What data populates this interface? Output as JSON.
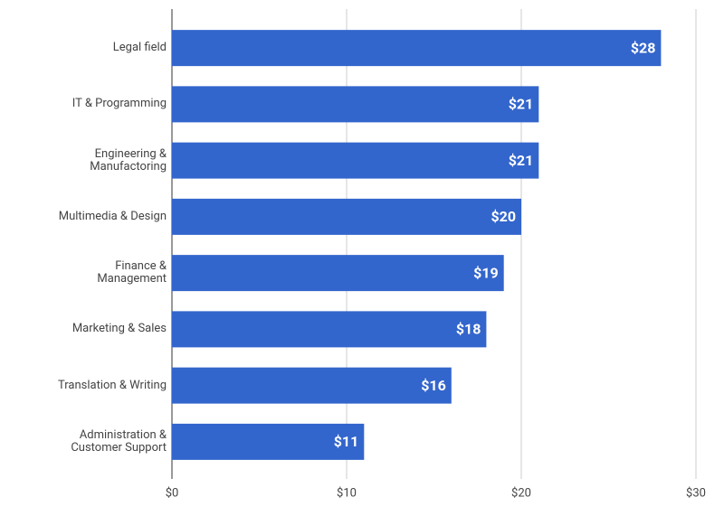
{
  "chart_data": {
    "type": "bar",
    "orientation": "horizontal",
    "categories": [
      "Legal field",
      "IT & Programming",
      "Engineering &\nManufactoring",
      "Multimedia & Design",
      "Finance &\nManagement",
      "Marketing & Sales",
      "Translation & Writing",
      "Administration &\nCustomer Support"
    ],
    "values": [
      28,
      21,
      21,
      20,
      19,
      18,
      16,
      11
    ],
    "value_labels": [
      "$28",
      "$21",
      "$21",
      "$20",
      "$19",
      "$18",
      "$16",
      "$11"
    ],
    "color": "#3366cc",
    "xlim": [
      0,
      30
    ],
    "xticks": [
      {
        "value": 0,
        "label": "$0"
      },
      {
        "value": 10,
        "label": "$10"
      },
      {
        "value": 20,
        "label": "$20"
      },
      {
        "value": 30,
        "label": "$30"
      }
    ],
    "grid": true
  }
}
